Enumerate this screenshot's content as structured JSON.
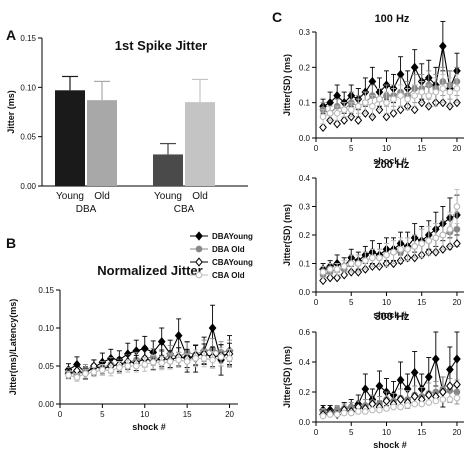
{
  "panels": {
    "a": {
      "letter": "A"
    },
    "b": {
      "letter": "B"
    },
    "c": {
      "letter": "C"
    }
  },
  "chart_data": [
    {
      "id": "A",
      "type": "bar",
      "title": "1st Spike Jitter",
      "ylabel": "Jitter (ms)",
      "ylim": [
        0,
        0.15
      ],
      "yticks": [
        "0.00",
        "0.05",
        "0.10",
        "0.15"
      ],
      "groups": [
        "DBA",
        "CBA"
      ],
      "categories": [
        "Young",
        "Old",
        "Young",
        "Old"
      ],
      "values": [
        0.097,
        0.087,
        0.032,
        0.085
      ],
      "errors": [
        0.014,
        0.019,
        0.011,
        0.023
      ],
      "colors": [
        "#1a1a1a",
        "#a8a8a8",
        "#4a4a4a",
        "#c4c4c4"
      ]
    },
    {
      "id": "B",
      "type": "line",
      "title": "Normalized Jitter",
      "xlabel": "shock #",
      "ylabel": "Jitter(ms)/Latency(ms)",
      "xlim": [
        0,
        21
      ],
      "ylim": [
        0,
        0.15
      ],
      "xticks": [
        "0",
        "5",
        "10",
        "15",
        "20"
      ],
      "yticks": [
        "0.00",
        "0.05",
        "0.10",
        "0.15"
      ],
      "x": [
        1,
        2,
        3,
        4,
        5,
        6,
        7,
        8,
        9,
        10,
        11,
        12,
        13,
        14,
        15,
        16,
        17,
        18,
        19,
        20
      ],
      "series": [
        {
          "name": "DBAYoung",
          "color": "#000000",
          "marker": "diamond-filled",
          "line": true,
          "values": [
            0.045,
            0.052,
            0.041,
            0.048,
            0.055,
            0.06,
            0.058,
            0.066,
            0.07,
            0.073,
            0.068,
            0.082,
            0.066,
            0.09,
            0.062,
            0.06,
            0.07,
            0.1,
            0.058,
            0.07
          ],
          "errors": [
            0.008,
            0.01,
            0.008,
            0.01,
            0.012,
            0.012,
            0.012,
            0.014,
            0.014,
            0.016,
            0.015,
            0.018,
            0.018,
            0.022,
            0.02,
            0.018,
            0.018,
            0.03,
            0.02,
            0.02
          ]
        },
        {
          "name": "DBA Old",
          "color": "#888888",
          "marker": "circle-filled",
          "line": true,
          "values": [
            0.042,
            0.038,
            0.045,
            0.05,
            0.048,
            0.052,
            0.05,
            0.055,
            0.058,
            0.06,
            0.062,
            0.058,
            0.065,
            0.062,
            0.068,
            0.065,
            0.07,
            0.072,
            0.068,
            0.07
          ],
          "errors": [
            0.006,
            0.006,
            0.007,
            0.008,
            0.008,
            0.009,
            0.009,
            0.01,
            0.01,
            0.011,
            0.011,
            0.011,
            0.012,
            0.012,
            0.013,
            0.013,
            0.014,
            0.014,
            0.014,
            0.014
          ]
        },
        {
          "name": "CBAYoung",
          "color": "#000000",
          "marker": "diamond-open",
          "line": true,
          "values": [
            0.04,
            0.044,
            0.04,
            0.05,
            0.046,
            0.05,
            0.052,
            0.056,
            0.054,
            0.06,
            0.056,
            0.06,
            0.058,
            0.062,
            0.06,
            0.064,
            0.066,
            0.062,
            0.064,
            0.066
          ],
          "errors": [
            0.006,
            0.007,
            0.007,
            0.008,
            0.008,
            0.009,
            0.009,
            0.01,
            0.01,
            0.011,
            0.011,
            0.011,
            0.012,
            0.012,
            0.012,
            0.013,
            0.013,
            0.013,
            0.014,
            0.014
          ]
        },
        {
          "name": "CBA Old",
          "color": "#bbbbbb",
          "marker": "circle-open",
          "line": true,
          "values": [
            0.038,
            0.035,
            0.04,
            0.042,
            0.045,
            0.044,
            0.048,
            0.05,
            0.05,
            0.052,
            0.055,
            0.054,
            0.056,
            0.058,
            0.056,
            0.06,
            0.06,
            0.058,
            0.062,
            0.06
          ],
          "errors": [
            0.005,
            0.005,
            0.006,
            0.006,
            0.007,
            0.007,
            0.008,
            0.008,
            0.008,
            0.009,
            0.009,
            0.009,
            0.01,
            0.01,
            0.01,
            0.011,
            0.011,
            0.011,
            0.012,
            0.012
          ]
        }
      ],
      "legend": [
        "DBAYoung",
        "DBA Old",
        "CBAYoung",
        "CBA Old"
      ]
    },
    {
      "id": "C1",
      "type": "line",
      "title": "100 Hz",
      "xlabel": "shock #",
      "ylabel": "Jitter(SD) (ms)",
      "xlim": [
        0,
        21
      ],
      "ylim": [
        0,
        0.3
      ],
      "xticks": [
        "0",
        "5",
        "10",
        "15",
        "20"
      ],
      "yticks": [
        "0.0",
        "0.1",
        "0.2",
        "0.3"
      ],
      "x": [
        1,
        2,
        3,
        4,
        5,
        6,
        7,
        8,
        9,
        10,
        11,
        12,
        13,
        14,
        15,
        16,
        17,
        18,
        19,
        20
      ],
      "series": [
        {
          "name": "DBAYoung",
          "color": "#000000",
          "marker": "diamond-filled",
          "line": true,
          "values": [
            0.09,
            0.1,
            0.12,
            0.1,
            0.12,
            0.11,
            0.13,
            0.16,
            0.13,
            0.15,
            0.14,
            0.18,
            0.14,
            0.2,
            0.16,
            0.17,
            0.15,
            0.26,
            0.14,
            0.19
          ],
          "errors": [
            0.02,
            0.03,
            0.03,
            0.03,
            0.03,
            0.03,
            0.04,
            0.04,
            0.04,
            0.04,
            0.04,
            0.05,
            0.05,
            0.05,
            0.05,
            0.05,
            0.05,
            0.07,
            0.05,
            0.05
          ]
        },
        {
          "name": "DBA Old",
          "color": "#888888",
          "marker": "circle-filled",
          "line": true,
          "values": [
            0.08,
            0.07,
            0.09,
            0.08,
            0.1,
            0.09,
            0.1,
            0.12,
            0.11,
            0.12,
            0.12,
            0.13,
            0.12,
            0.14,
            0.14,
            0.15,
            0.14,
            0.16,
            0.15,
            0.16
          ],
          "errors": [
            0.02,
            0.02,
            0.02,
            0.02,
            0.03,
            0.03,
            0.03,
            0.03,
            0.03,
            0.03,
            0.03,
            0.04,
            0.04,
            0.04,
            0.04,
            0.04,
            0.04,
            0.04,
            0.04,
            0.04
          ]
        },
        {
          "name": "CBAYoung",
          "color": "#000000",
          "marker": "diamond-open",
          "line": false,
          "values": [
            0.03,
            0.05,
            0.04,
            0.05,
            0.06,
            0.05,
            0.07,
            0.06,
            0.08,
            0.06,
            0.07,
            0.08,
            0.09,
            0.08,
            0.1,
            0.09,
            0.1,
            0.1,
            0.09,
            0.1
          ],
          "errors": [
            0,
            0,
            0,
            0,
            0,
            0,
            0,
            0,
            0,
            0,
            0,
            0,
            0,
            0,
            0,
            0,
            0,
            0,
            0,
            0
          ]
        },
        {
          "name": "CBA Old",
          "color": "#bbbbbb",
          "marker": "circle-open",
          "line": true,
          "values": [
            0.06,
            0.07,
            0.07,
            0.08,
            0.08,
            0.09,
            0.1,
            0.09,
            0.11,
            0.1,
            0.11,
            0.12,
            0.11,
            0.12,
            0.13,
            0.12,
            0.13,
            0.14,
            0.13,
            0.14
          ],
          "errors": [
            0.02,
            0.02,
            0.02,
            0.02,
            0.02,
            0.02,
            0.03,
            0.03,
            0.03,
            0.03,
            0.03,
            0.03,
            0.03,
            0.03,
            0.03,
            0.03,
            0.04,
            0.04,
            0.04,
            0.04
          ]
        }
      ]
    },
    {
      "id": "C2",
      "type": "line",
      "title": "200 Hz",
      "xlabel": "shock #",
      "ylabel": "Jitter(SD) (ms)",
      "xlim": [
        0,
        21
      ],
      "ylim": [
        0,
        0.4
      ],
      "xticks": [
        "0",
        "5",
        "10",
        "15",
        "20"
      ],
      "yticks": [
        "0.0",
        "0.1",
        "0.2",
        "0.3",
        "0.4"
      ],
      "x": [
        1,
        2,
        3,
        4,
        5,
        6,
        7,
        8,
        9,
        10,
        11,
        12,
        13,
        14,
        15,
        16,
        17,
        18,
        19,
        20
      ],
      "series": [
        {
          "name": "DBAYoung",
          "color": "#000000",
          "marker": "diamond-filled",
          "line": true,
          "values": [
            0.08,
            0.09,
            0.1,
            0.09,
            0.12,
            0.11,
            0.13,
            0.14,
            0.13,
            0.15,
            0.15,
            0.17,
            0.16,
            0.19,
            0.18,
            0.2,
            0.22,
            0.24,
            0.26,
            0.27
          ],
          "errors": [
            0.02,
            0.02,
            0.03,
            0.03,
            0.03,
            0.03,
            0.03,
            0.04,
            0.04,
            0.04,
            0.04,
            0.04,
            0.05,
            0.05,
            0.05,
            0.05,
            0.06,
            0.06,
            0.07,
            0.07
          ]
        },
        {
          "name": "DBA Old",
          "color": "#888888",
          "marker": "circle-filled",
          "line": true,
          "values": [
            0.06,
            0.07,
            0.08,
            0.08,
            0.1,
            0.1,
            0.11,
            0.12,
            0.12,
            0.13,
            0.14,
            0.14,
            0.15,
            0.16,
            0.17,
            0.18,
            0.19,
            0.2,
            0.21,
            0.22
          ],
          "errors": [
            0.02,
            0.02,
            0.02,
            0.02,
            0.03,
            0.03,
            0.03,
            0.03,
            0.03,
            0.04,
            0.04,
            0.04,
            0.04,
            0.04,
            0.05,
            0.05,
            0.05,
            0.05,
            0.06,
            0.06
          ]
        },
        {
          "name": "CBAYoung",
          "color": "#000000",
          "marker": "diamond-open",
          "line": false,
          "values": [
            0.04,
            0.05,
            0.05,
            0.06,
            0.07,
            0.07,
            0.08,
            0.09,
            0.09,
            0.1,
            0.1,
            0.11,
            0.12,
            0.12,
            0.13,
            0.14,
            0.14,
            0.15,
            0.16,
            0.17
          ],
          "errors": [
            0,
            0,
            0,
            0,
            0,
            0,
            0,
            0,
            0,
            0,
            0,
            0,
            0,
            0,
            0,
            0,
            0,
            0,
            0,
            0
          ]
        },
        {
          "name": "CBA Old",
          "color": "#bbbbbb",
          "marker": "circle-open",
          "line": true,
          "values": [
            0.07,
            0.08,
            0.08,
            0.09,
            0.1,
            0.1,
            0.11,
            0.12,
            0.12,
            0.13,
            0.14,
            0.15,
            0.15,
            0.16,
            0.17,
            0.18,
            0.19,
            0.2,
            0.22,
            0.3
          ],
          "errors": [
            0.02,
            0.02,
            0.02,
            0.02,
            0.03,
            0.03,
            0.03,
            0.03,
            0.03,
            0.04,
            0.04,
            0.04,
            0.04,
            0.04,
            0.05,
            0.05,
            0.05,
            0.05,
            0.06,
            0.06
          ]
        }
      ]
    },
    {
      "id": "C3",
      "type": "line",
      "title": "300 Hz",
      "xlabel": "shock #",
      "ylabel": "Jitter(SD) (ms)",
      "xlim": [
        0,
        21
      ],
      "ylim": [
        0,
        0.6
      ],
      "xticks": [
        "0",
        "5",
        "10",
        "15",
        "20"
      ],
      "yticks": [
        "0.0",
        "0.2",
        "0.4",
        "0.6"
      ],
      "x": [
        1,
        2,
        3,
        4,
        5,
        6,
        7,
        8,
        9,
        10,
        11,
        12,
        13,
        14,
        15,
        16,
        17,
        18,
        19,
        20
      ],
      "series": [
        {
          "name": "DBAYoung",
          "color": "#000000",
          "marker": "diamond-filled",
          "line": true,
          "values": [
            0.08,
            0.08,
            0.07,
            0.09,
            0.1,
            0.12,
            0.22,
            0.15,
            0.24,
            0.2,
            0.18,
            0.28,
            0.22,
            0.33,
            0.22,
            0.3,
            0.42,
            0.2,
            0.35,
            0.42
          ],
          "errors": [
            0.03,
            0.03,
            0.03,
            0.04,
            0.05,
            0.06,
            0.1,
            0.07,
            0.1,
            0.09,
            0.09,
            0.12,
            0.1,
            0.14,
            0.1,
            0.13,
            0.18,
            0.1,
            0.15,
            0.18
          ]
        },
        {
          "name": "DBA Old",
          "color": "#888888",
          "marker": "circle-filled",
          "line": true,
          "values": [
            0.07,
            0.06,
            0.08,
            0.09,
            0.1,
            0.1,
            0.11,
            0.13,
            0.12,
            0.15,
            0.14,
            0.16,
            0.15,
            0.18,
            0.17,
            0.19,
            0.2,
            0.22,
            0.21,
            0.2
          ],
          "errors": [
            0.02,
            0.02,
            0.03,
            0.03,
            0.03,
            0.04,
            0.04,
            0.05,
            0.05,
            0.05,
            0.05,
            0.06,
            0.06,
            0.06,
            0.06,
            0.07,
            0.07,
            0.08,
            0.08,
            0.08
          ]
        },
        {
          "name": "CBAYoung",
          "color": "#000000",
          "marker": "diamond-open",
          "line": false,
          "values": [
            0.05,
            0.06,
            0.05,
            0.08,
            0.07,
            0.1,
            0.09,
            0.12,
            0.1,
            0.14,
            0.12,
            0.15,
            0.13,
            0.17,
            0.15,
            0.18,
            0.17,
            0.2,
            0.24,
            0.25
          ],
          "errors": [
            0,
            0,
            0,
            0,
            0,
            0,
            0,
            0,
            0,
            0,
            0,
            0,
            0,
            0,
            0,
            0,
            0,
            0,
            0,
            0
          ]
        },
        {
          "name": "CBA Old",
          "color": "#bbbbbb",
          "marker": "circle-open",
          "line": false,
          "values": [
            0.04,
            0.05,
            0.05,
            0.06,
            0.06,
            0.07,
            0.07,
            0.08,
            0.08,
            0.09,
            0.1,
            0.1,
            0.11,
            0.12,
            0.12,
            0.13,
            0.14,
            0.15,
            0.15,
            0.16
          ],
          "errors": [
            0,
            0,
            0,
            0,
            0,
            0,
            0,
            0,
            0,
            0,
            0,
            0,
            0,
            0,
            0,
            0,
            0,
            0,
            0,
            0
          ]
        }
      ]
    }
  ]
}
